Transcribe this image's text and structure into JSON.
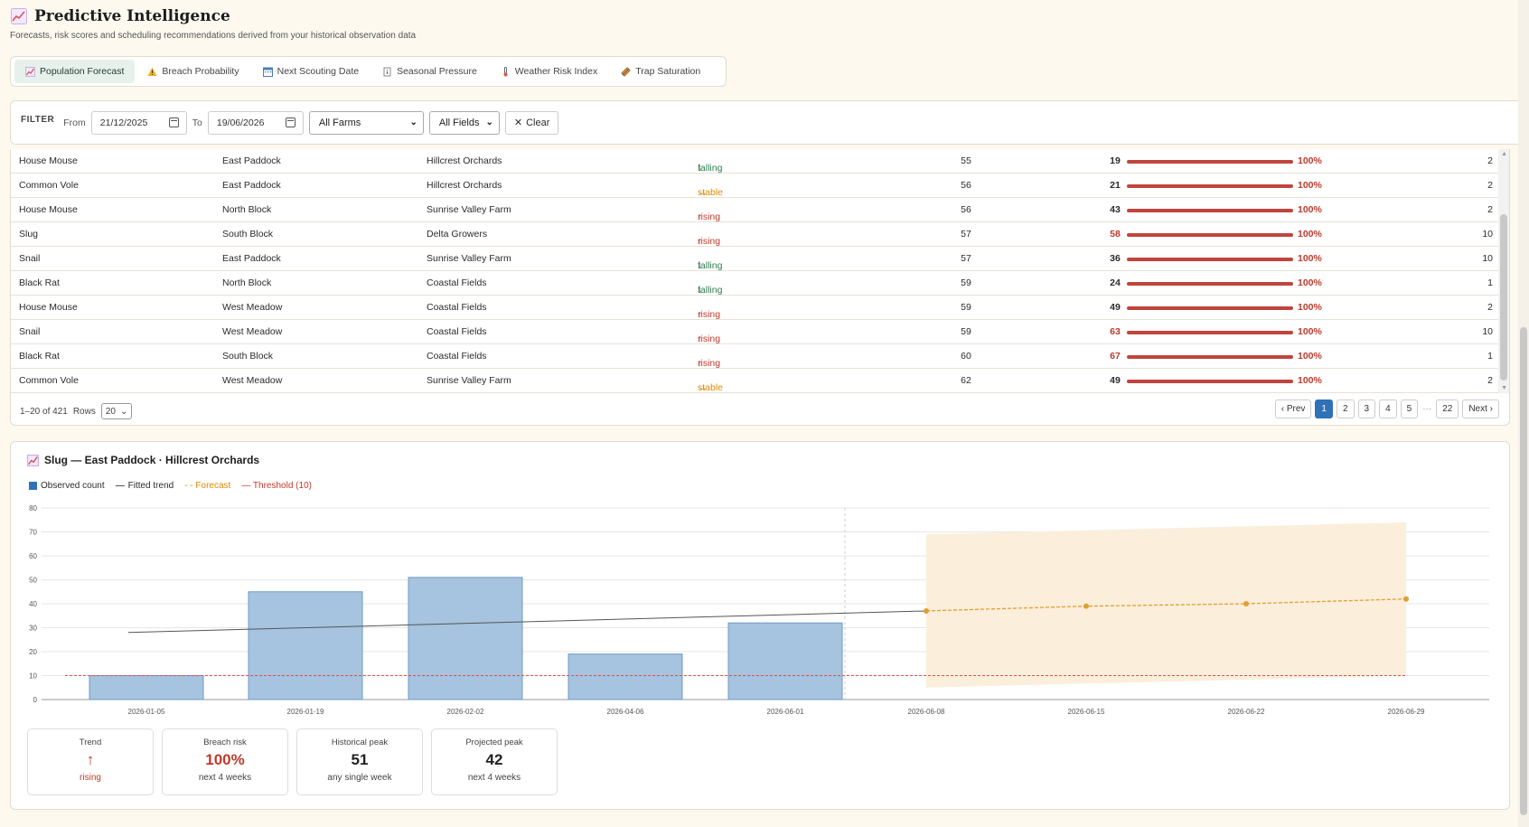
{
  "header": {
    "title": "Predictive Intelligence",
    "subtitle": "Forecasts, risk scores and scheduling recommendations derived from your historical observation data"
  },
  "tabs": [
    {
      "label": "Population Forecast",
      "icon": "chart-icon",
      "active": true
    },
    {
      "label": "Breach Probability",
      "icon": "warning-icon"
    },
    {
      "label": "Next Scouting Date",
      "icon": "calendar-icon"
    },
    {
      "label": "Seasonal Pressure",
      "icon": "info-icon"
    },
    {
      "label": "Weather Risk Index",
      "icon": "thermometer-icon"
    },
    {
      "label": "Trap Saturation",
      "icon": "trap-icon"
    }
  ],
  "filter": {
    "title": "FILTER",
    "from_label": "From",
    "from_value": "21/12/2025",
    "to_label": "To",
    "to_value": "19/06/2026",
    "farm_select": "All Farms",
    "field_select": "All Fields",
    "clear_label": "Clear"
  },
  "table": {
    "rows": [
      {
        "species": "House Mouse",
        "field": "East Paddock",
        "farm": "Hillcrest Orchards",
        "trend": "falling",
        "arrow": "↓",
        "n1": "55",
        "n2": "19",
        "hot": false,
        "pct": "100%",
        "last": "2"
      },
      {
        "species": "Common Vole",
        "field": "East Paddock",
        "farm": "Hillcrest Orchards",
        "trend": "stable",
        "arrow": "→",
        "n1": "56",
        "n2": "21",
        "hot": false,
        "pct": "100%",
        "last": "2"
      },
      {
        "species": "House Mouse",
        "field": "North Block",
        "farm": "Sunrise Valley Farm",
        "trend": "rising",
        "arrow": "↑",
        "n1": "56",
        "n2": "43",
        "hot": false,
        "pct": "100%",
        "last": "2"
      },
      {
        "species": "Slug",
        "field": "South Block",
        "farm": "Delta Growers",
        "trend": "rising",
        "arrow": "↑",
        "n1": "57",
        "n2": "58",
        "hot": true,
        "pct": "100%",
        "last": "10"
      },
      {
        "species": "Snail",
        "field": "East Paddock",
        "farm": "Sunrise Valley Farm",
        "trend": "falling",
        "arrow": "↓",
        "n1": "57",
        "n2": "36",
        "hot": false,
        "pct": "100%",
        "last": "10"
      },
      {
        "species": "Black Rat",
        "field": "North Block",
        "farm": "Coastal Fields",
        "trend": "falling",
        "arrow": "↓",
        "n1": "59",
        "n2": "24",
        "hot": false,
        "pct": "100%",
        "last": "1"
      },
      {
        "species": "House Mouse",
        "field": "West Meadow",
        "farm": "Coastal Fields",
        "trend": "rising",
        "arrow": "↑",
        "n1": "59",
        "n2": "49",
        "hot": false,
        "pct": "100%",
        "last": "2"
      },
      {
        "species": "Snail",
        "field": "West Meadow",
        "farm": "Coastal Fields",
        "trend": "rising",
        "arrow": "↑",
        "n1": "59",
        "n2": "63",
        "hot": true,
        "pct": "100%",
        "last": "10"
      },
      {
        "species": "Black Rat",
        "field": "South Block",
        "farm": "Coastal Fields",
        "trend": "rising",
        "arrow": "↑",
        "n1": "60",
        "n2": "67",
        "hot": true,
        "pct": "100%",
        "last": "1"
      },
      {
        "species": "Common Vole",
        "field": "West Meadow",
        "farm": "Sunrise Valley Farm",
        "trend": "stable",
        "arrow": "→",
        "n1": "62",
        "n2": "49",
        "hot": false,
        "pct": "100%",
        "last": "2"
      }
    ],
    "breach_fraction": 1.0
  },
  "pagination": {
    "range_text": "1–20 of 421",
    "rows_label": "Rows",
    "rows_value": "20",
    "prev_label": "‹ Prev",
    "next_label": "Next ›",
    "pages": [
      "1",
      "2",
      "3",
      "4",
      "5"
    ],
    "ellipsis": "···",
    "last_page": "22",
    "current_page": "1"
  },
  "detail": {
    "title": "Slug — East Paddock · Hillcrest Orchards",
    "legend": {
      "observed": "Observed count",
      "trend": "Fitted trend",
      "forecast": "- - Forecast",
      "threshold": "— Threshold (10)"
    },
    "stats": [
      {
        "label": "Trend",
        "value": "↑",
        "sub": "rising",
        "value_red": true,
        "sub_red": true
      },
      {
        "label": "Breach risk",
        "value": "100%",
        "sub": "next 4 weeks",
        "value_red": true,
        "sub_red": false
      },
      {
        "label": "Historical peak",
        "value": "51",
        "sub": "any single week",
        "value_red": false,
        "sub_red": false
      },
      {
        "label": "Projected peak",
        "value": "42",
        "sub": "next 4 weeks",
        "value_red": false,
        "sub_red": false
      }
    ]
  },
  "colors": {
    "observed_bar": "#a6c3df",
    "observed_stroke": "#6f9bc7",
    "trend_line": "#555555",
    "forecast": "#e0a030",
    "forecast_band": "#fbeedb",
    "threshold": "#d9534f",
    "legend_observed": "#2f72b8"
  },
  "chart_data": {
    "type": "bar",
    "categories": [
      "2026-01-05",
      "2026-01-19",
      "2026-02-02",
      "2026-04-06",
      "2026-06-01",
      "2026-06-08",
      "2026-06-15",
      "2026-06-22",
      "2026-06-29"
    ],
    "observed": [
      10,
      45,
      51,
      19,
      32,
      null,
      null,
      null,
      null
    ],
    "trend": [
      28,
      null,
      null,
      null,
      null,
      37,
      null,
      null,
      null
    ],
    "forecast": [
      null,
      null,
      null,
      null,
      null,
      37,
      39,
      40,
      42
    ],
    "forecast_upper": [
      null,
      null,
      null,
      null,
      null,
      69,
      null,
      null,
      74
    ],
    "forecast_lower": [
      null,
      null,
      null,
      null,
      null,
      5,
      null,
      null,
      10
    ],
    "threshold": 10,
    "yticks": [
      0,
      10,
      20,
      30,
      40,
      50,
      60,
      70,
      80
    ],
    "ylim": [
      0,
      80
    ],
    "legend_position": "top-left",
    "grid": true
  }
}
